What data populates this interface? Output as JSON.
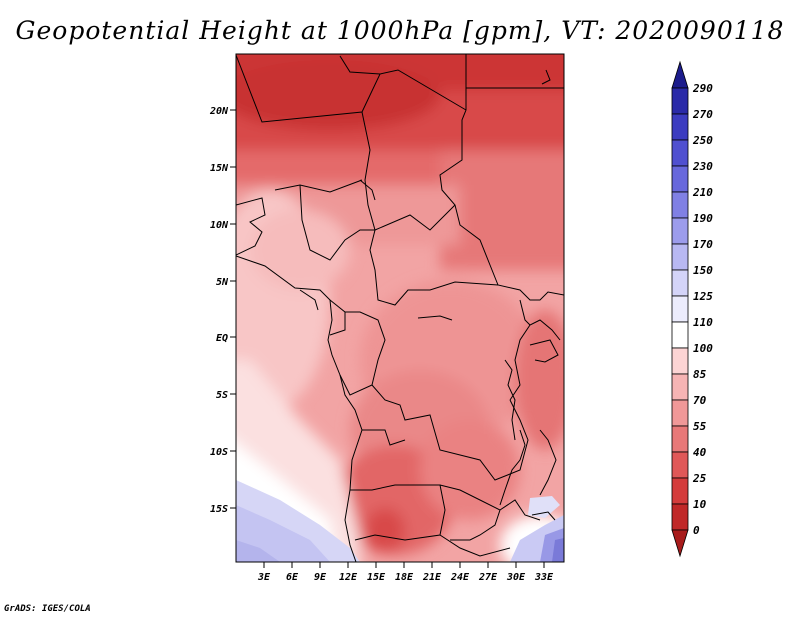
{
  "title": "Geopotential Height at 1000hPa [gpm], VT: 2020090118",
  "credit": "GrADS: IGES/COLA",
  "map": {
    "lat_labels": [
      "20N",
      "15N",
      "10N",
      "5N",
      "EQ",
      "5S",
      "10S",
      "15S"
    ],
    "lon_labels": [
      "3E",
      "6E",
      "9E",
      "12E",
      "15E",
      "18E",
      "21E",
      "24E",
      "27E",
      "30E",
      "33E"
    ]
  },
  "colorbar": {
    "labels": [
      "290",
      "270",
      "250",
      "230",
      "210",
      "190",
      "170",
      "150",
      "125",
      "110",
      "100",
      "85",
      "70",
      "55",
      "40",
      "25",
      "10",
      "0"
    ],
    "colors": [
      "#1c1c8c",
      "#2a2aa8",
      "#3c3cc0",
      "#5050d0",
      "#6868dc",
      "#8080e4",
      "#9c9cec",
      "#b8b8f2",
      "#d4d4f8",
      "#ececfc",
      "#ffffff",
      "#fcd4d4",
      "#f6b4b4",
      "#f09898",
      "#e87878",
      "#e05858",
      "#d43c3c",
      "#c02828",
      "#a81c1c"
    ]
  }
}
